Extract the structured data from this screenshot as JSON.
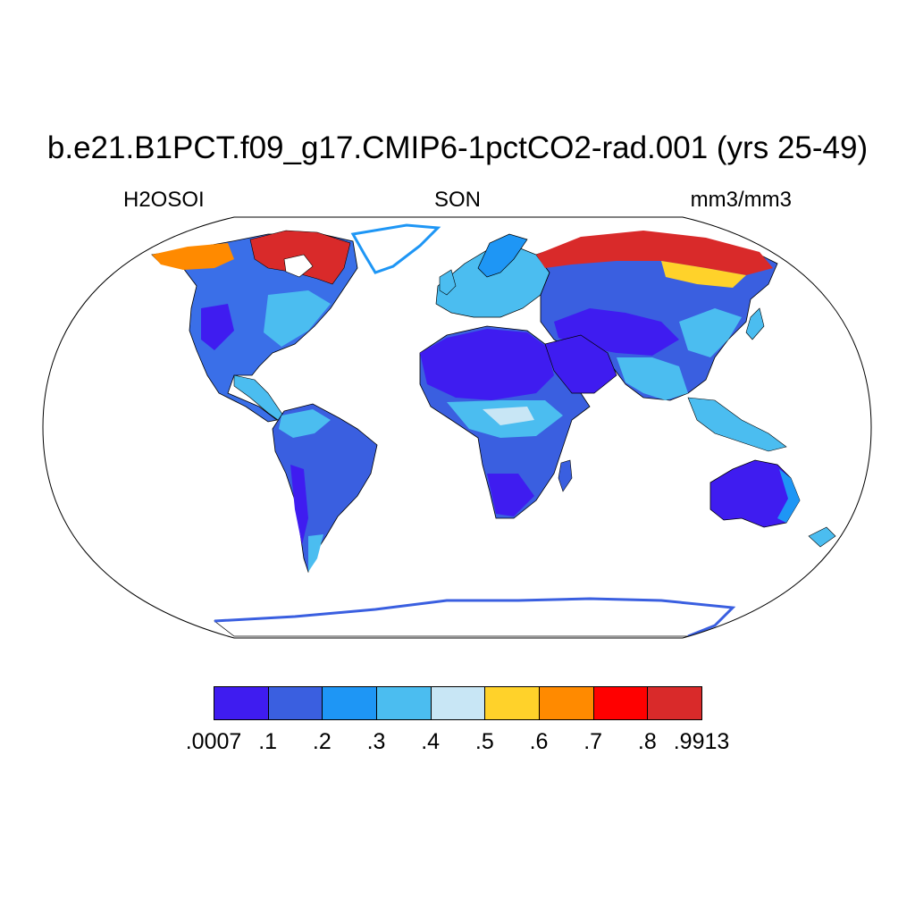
{
  "header": {
    "title": "b.e21.B1PCT.f09_g17.CMIP6-1pctCO2-rad.001 (yrs 25-49)",
    "variable": "H2OSOI",
    "season": "SON",
    "units": "mm3/mm3"
  },
  "map": {
    "projection": "Robinson",
    "field": "soil moisture",
    "ocean_color": "#ffffff"
  },
  "colorbar": {
    "colors": [
      "#3f1cf0",
      "#3a5fe0",
      "#1e96f5",
      "#4bbdf0",
      "#c8e6f5",
      "#ffd22a",
      "#ff8a00",
      "#ff0000",
      "#d92a2a"
    ],
    "labels": [
      ".0007",
      ".1",
      ".2",
      ".3",
      ".4",
      ".5",
      ".6",
      ".7",
      ".8",
      ".9913"
    ]
  }
}
